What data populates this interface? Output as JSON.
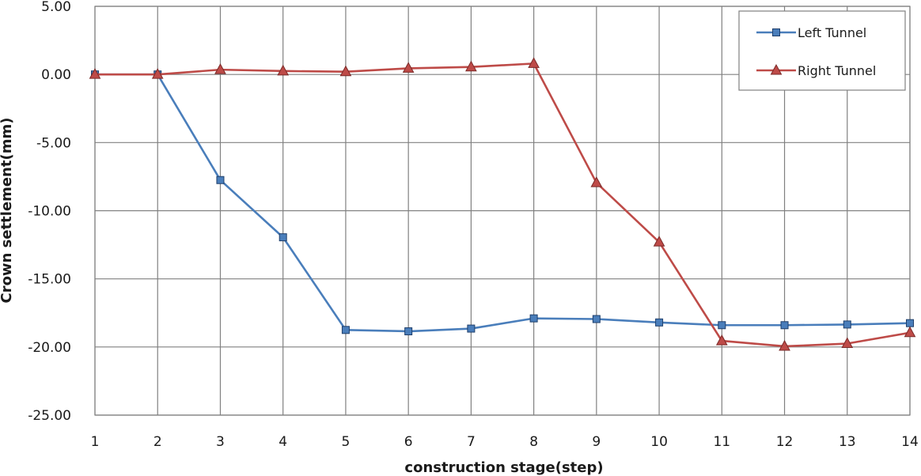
{
  "chart_data": {
    "type": "line",
    "title": "",
    "xlabel": "construction stage(step)",
    "ylabel": "Crown settlement(mm)",
    "x": [
      1,
      2,
      3,
      4,
      5,
      6,
      7,
      8,
      9,
      10,
      11,
      12,
      13,
      14
    ],
    "ylim": [
      -25,
      5
    ],
    "yticks": [
      5,
      0,
      -5,
      -10,
      -15,
      -20,
      -25
    ],
    "ytick_labels": [
      "5.00",
      "0.00",
      "-5.00",
      "-10.00",
      "-15.00",
      "-20.00",
      "-25.00"
    ],
    "grid": true,
    "legend_position": "top-right",
    "series": [
      {
        "name": "Left Tunnel",
        "color": "#4A7EBB",
        "marker": "square",
        "values": [
          0.0,
          0.0,
          -7.75,
          -11.95,
          -18.75,
          -18.85,
          -18.65,
          -17.9,
          -17.95,
          -18.2,
          -18.4,
          -18.4,
          -18.35,
          -18.25
        ]
      },
      {
        "name": "Right Tunnel",
        "color": "#BE4B48",
        "marker": "triangle",
        "values": [
          0.0,
          0.0,
          0.35,
          0.25,
          0.2,
          0.45,
          0.55,
          0.8,
          -7.95,
          -12.3,
          -19.55,
          -19.95,
          -19.75,
          -18.95
        ]
      }
    ]
  }
}
